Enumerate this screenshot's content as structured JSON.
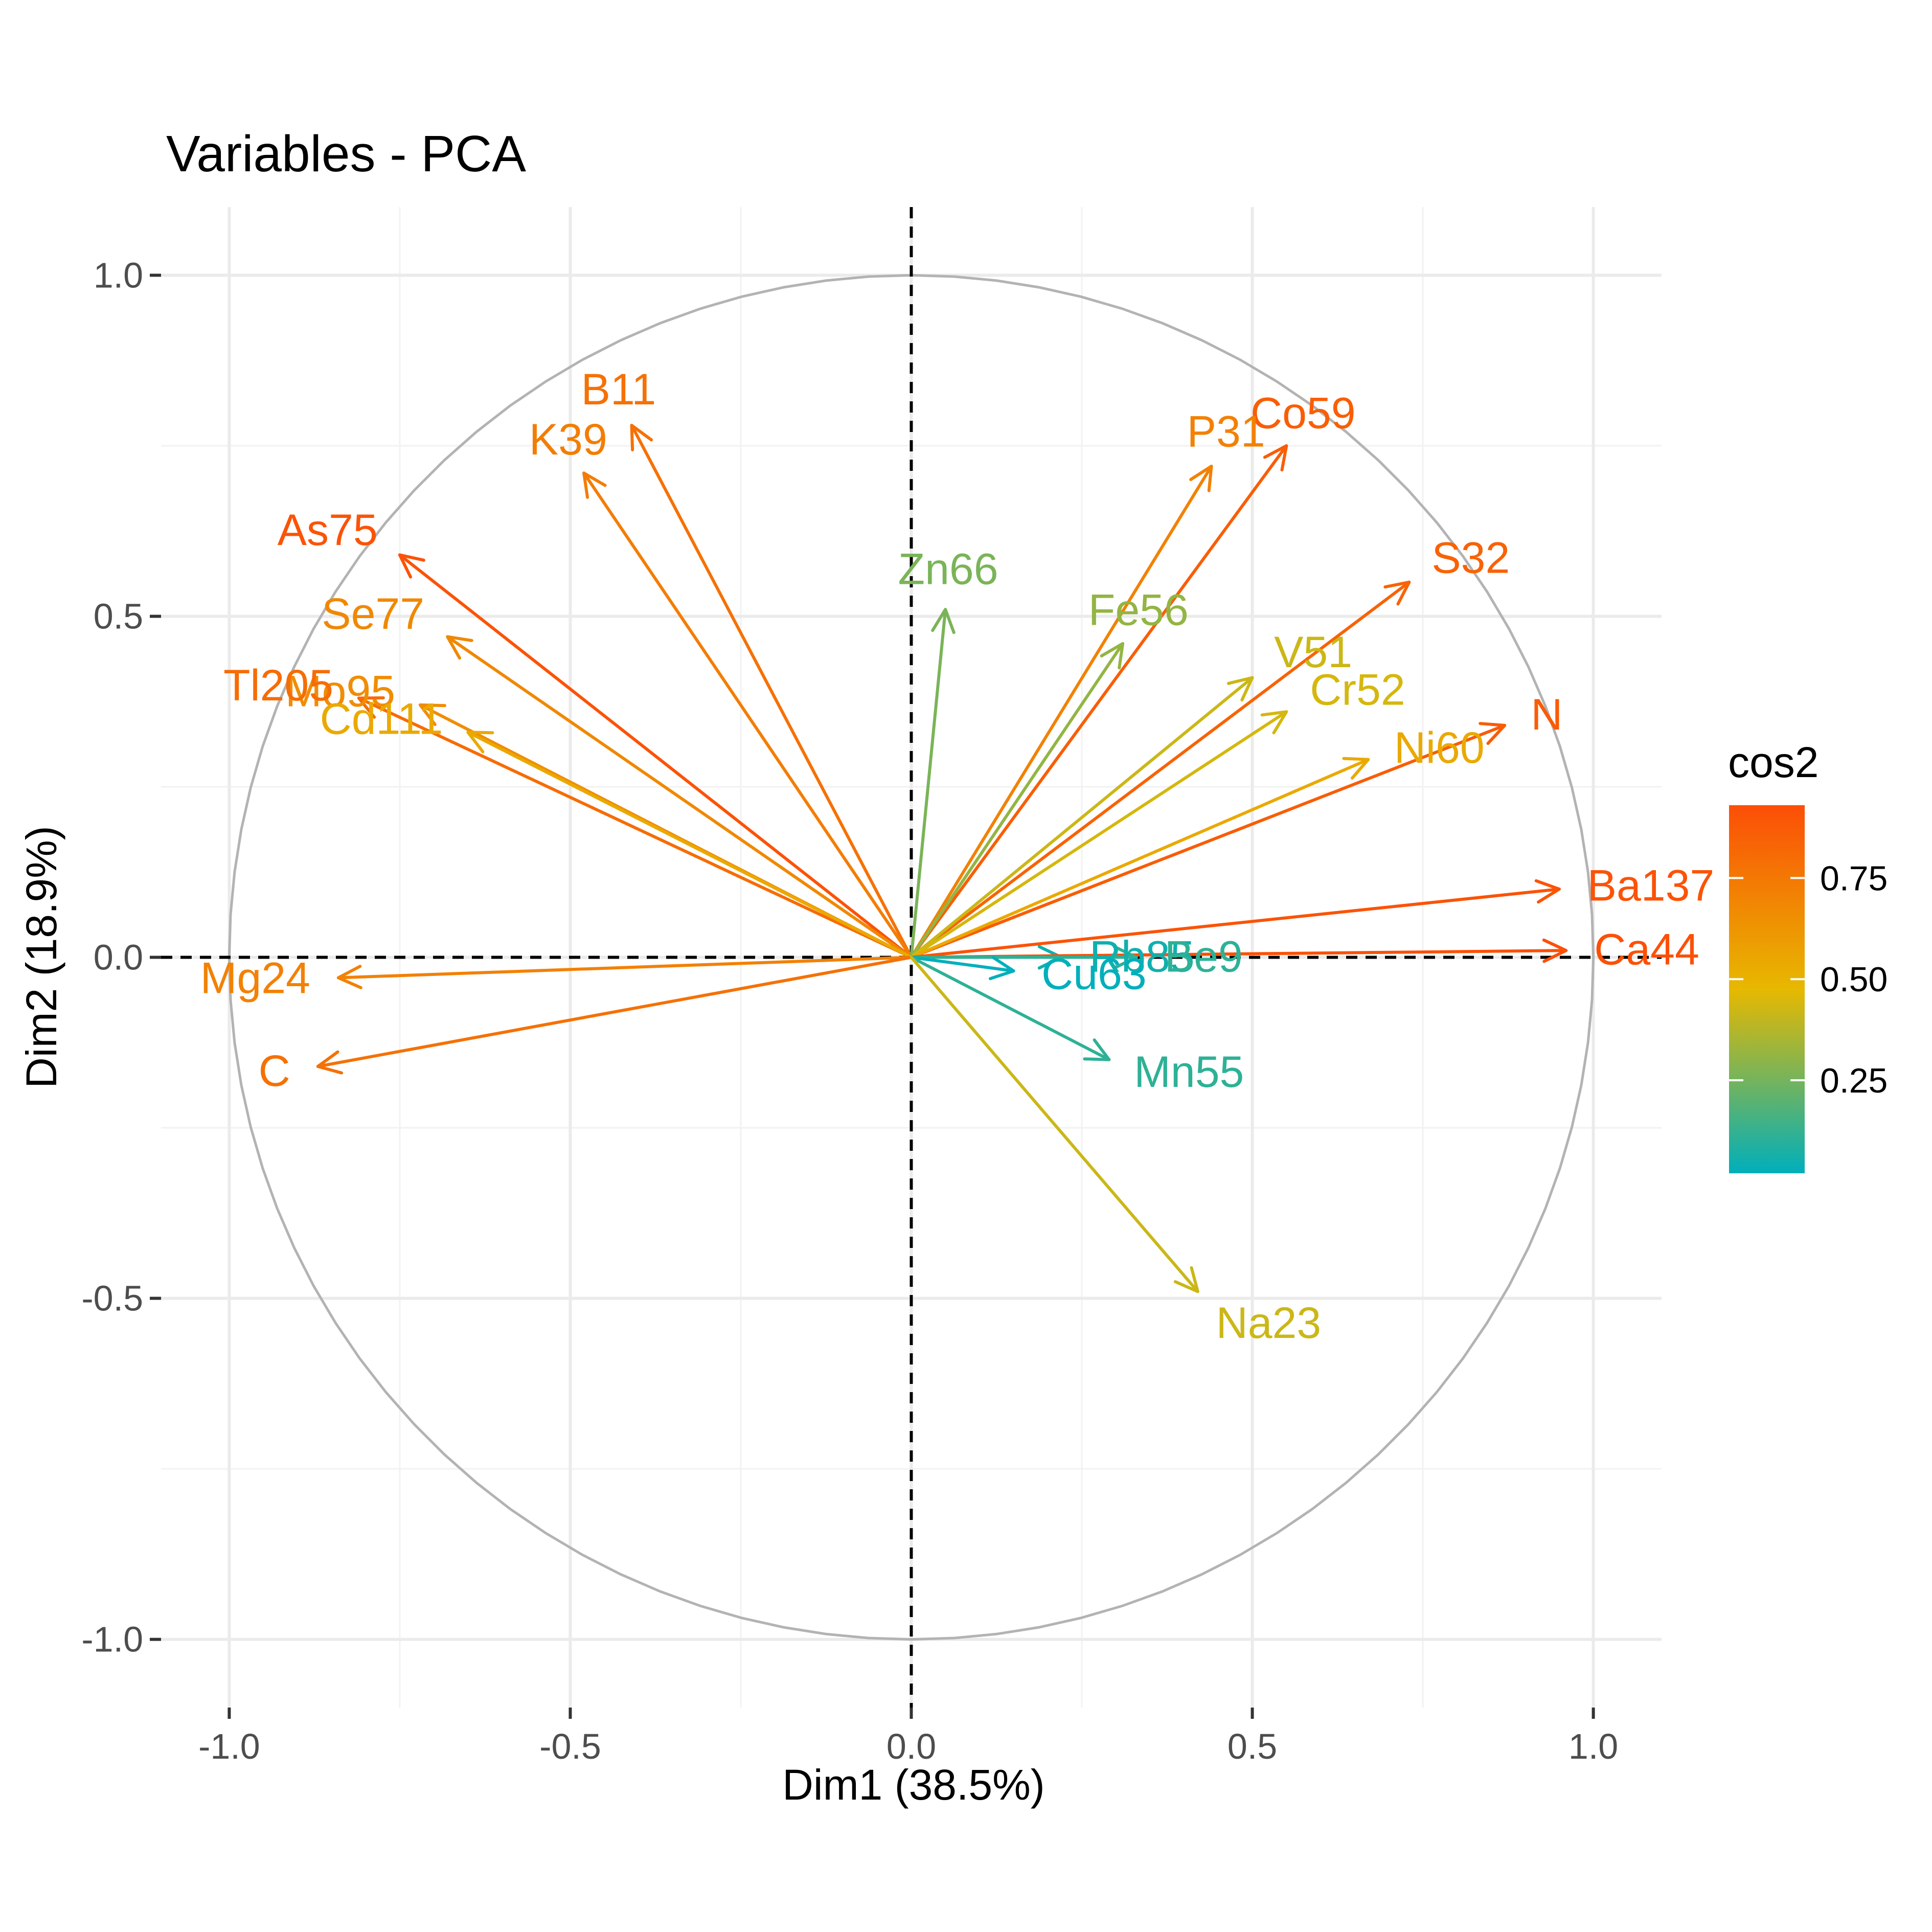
{
  "chart_data": {
    "type": "scatter",
    "title": "Variables - PCA",
    "xlabel": "Dim1 (38.5%)",
    "ylabel": "Dim2 (18.9%)",
    "xlim": [
      -1.1,
      1.1
    ],
    "ylim": [
      -1.1,
      1.1
    ],
    "xticks": [
      -1.0,
      -0.5,
      0.0,
      0.5,
      1.0
    ],
    "yticks": [
      -1.0,
      -0.5,
      0.0,
      0.5,
      1.0
    ],
    "xtick_labels": [
      "-1.0",
      "-0.5",
      "0.0",
      "0.5",
      "1.0"
    ],
    "ytick_labels": [
      "-1.0",
      "-0.5",
      "0.0",
      "0.5",
      "1.0"
    ],
    "grid": true,
    "unit_circle": true,
    "legend": {
      "title": "cos2",
      "placement": "right",
      "ticks": [
        0.25,
        0.5,
        0.75
      ],
      "tick_labels": [
        "0.25",
        "0.50",
        "0.75"
      ],
      "range": [
        0.02,
        0.93
      ],
      "gradient_colors": [
        "#00AFBB",
        "#E7B800",
        "#FC4E07"
      ]
    },
    "variables": [
      {
        "name": "B11",
        "x": -0.41,
        "y": 0.78,
        "cos2": 0.78
      },
      {
        "name": "Co59",
        "x": 0.55,
        "y": 0.75,
        "cos2": 0.86
      },
      {
        "name": "As75",
        "x": -0.75,
        "y": 0.59,
        "cos2": 0.91
      },
      {
        "name": "K39",
        "x": -0.48,
        "y": 0.71,
        "cos2": 0.73
      },
      {
        "name": "P31",
        "x": 0.44,
        "y": 0.72,
        "cos2": 0.71
      },
      {
        "name": "Zn66",
        "x": 0.05,
        "y": 0.51,
        "cos2": 0.26
      },
      {
        "name": "Se77",
        "x": -0.68,
        "y": 0.47,
        "cos2": 0.68
      },
      {
        "name": "Fe56",
        "x": 0.31,
        "y": 0.46,
        "cos2": 0.31
      },
      {
        "name": "S32",
        "x": 0.73,
        "y": 0.55,
        "cos2": 0.84
      },
      {
        "name": "V51",
        "x": 0.5,
        "y": 0.41,
        "cos2": 0.42
      },
      {
        "name": "Mo95",
        "x": -0.72,
        "y": 0.37,
        "cos2": 0.66
      },
      {
        "name": "Tl205",
        "x": -0.81,
        "y": 0.38,
        "cos2": 0.8
      },
      {
        "name": "Cd111",
        "x": -0.65,
        "y": 0.33,
        "cos2": 0.54
      },
      {
        "name": "Cr52",
        "x": 0.55,
        "y": 0.36,
        "cos2": 0.44
      },
      {
        "name": "N",
        "x": 0.87,
        "y": 0.34,
        "cos2": 0.87
      },
      {
        "name": "Ni60",
        "x": 0.67,
        "y": 0.29,
        "cos2": 0.54
      },
      {
        "name": "Ba137",
        "x": 0.95,
        "y": 0.1,
        "cos2": 0.91
      },
      {
        "name": "Rb85",
        "x": 0.22,
        "y": 0.0,
        "cos2": 0.05
      },
      {
        "name": "Mg24",
        "x": -0.84,
        "y": -0.03,
        "cos2": 0.71
      },
      {
        "name": "Ca44",
        "x": 0.96,
        "y": 0.01,
        "cos2": 0.92
      },
      {
        "name": "Be9",
        "x": 0.33,
        "y": 0.0,
        "cos2": 0.11
      },
      {
        "name": "Cu63",
        "x": 0.15,
        "y": -0.02,
        "cos2": 0.02
      },
      {
        "name": "Mn55",
        "x": 0.29,
        "y": -0.15,
        "cos2": 0.11
      },
      {
        "name": "C",
        "x": -0.87,
        "y": -0.16,
        "cos2": 0.78
      },
      {
        "name": "Na23",
        "x": 0.42,
        "y": -0.49,
        "cos2": 0.42
      }
    ],
    "label_offsets_hint": {}
  }
}
